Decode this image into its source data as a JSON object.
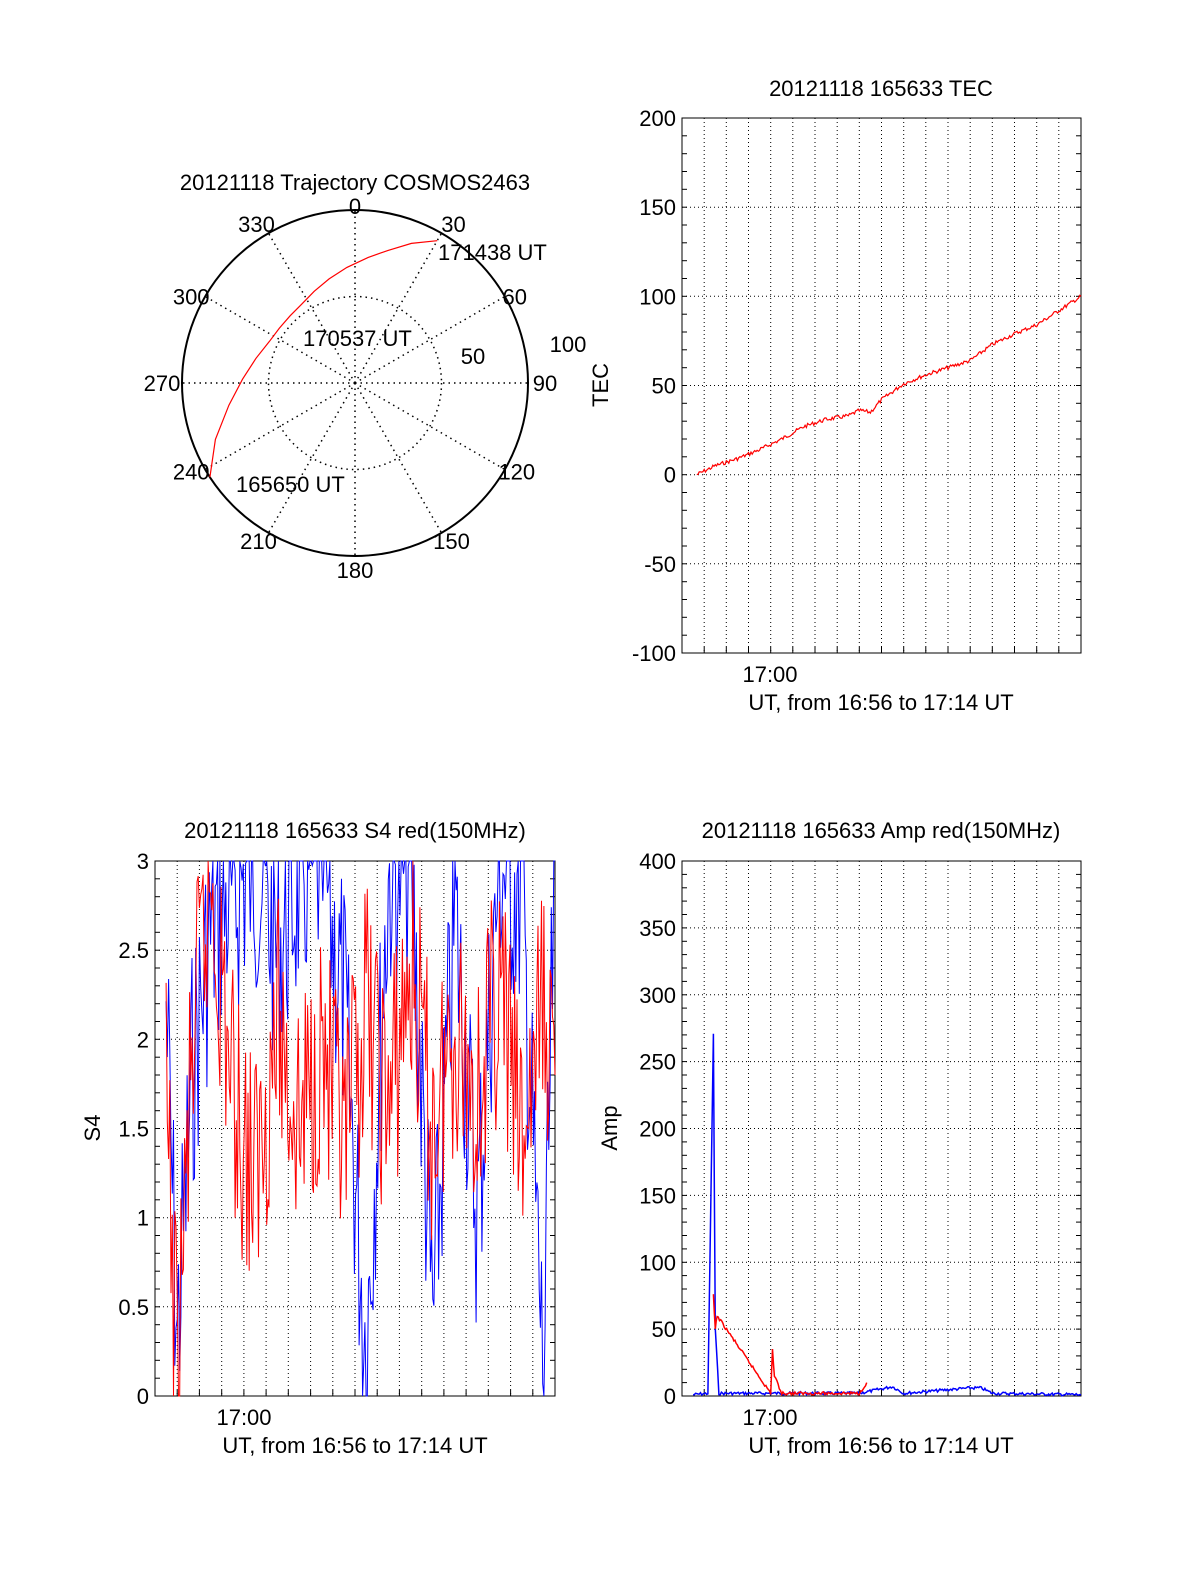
{
  "colors": {
    "red_series": "#ff0000",
    "blue_series": "#0000ff",
    "axes": "#000000",
    "background": "#ffffff"
  },
  "chart_data": [
    {
      "type": "polar",
      "title": "20121118 Trajectory COSMOS2463",
      "angle_labels": [
        {
          "angle": 0,
          "label": "0"
        },
        {
          "angle": 30,
          "label": "30"
        },
        {
          "angle": 60,
          "label": "60"
        },
        {
          "angle": 90,
          "label": "90"
        },
        {
          "angle": 120,
          "label": "120"
        },
        {
          "angle": 150,
          "label": "150"
        },
        {
          "angle": 180,
          "label": "180"
        },
        {
          "angle": 210,
          "label": "210"
        },
        {
          "angle": 240,
          "label": "240"
        },
        {
          "angle": 270,
          "label": "270"
        },
        {
          "angle": 300,
          "label": "300"
        },
        {
          "angle": 330,
          "label": "330"
        }
      ],
      "radial_ticks": [
        50,
        100
      ],
      "radial_labels": [
        "50",
        "100"
      ],
      "r_max": 100,
      "trajectory": {
        "color": "red",
        "start": {
          "label": "165650 UT",
          "azimuth": 237,
          "radius": 100
        },
        "middle": {
          "label": "170537 UT",
          "azimuth": 322,
          "radius": 55
        },
        "end": {
          "label": "171438 UT",
          "azimuth": 30,
          "radius": 95
        },
        "path": [
          [
            237,
            100
          ],
          [
            248,
            87
          ],
          [
            260,
            74
          ],
          [
            272,
            65
          ],
          [
            284,
            59
          ],
          [
            296,
            55
          ],
          [
            306,
            54
          ],
          [
            316,
            54
          ],
          [
            326,
            55
          ],
          [
            336,
            58
          ],
          [
            346,
            62
          ],
          [
            356,
            67
          ],
          [
            6,
            73
          ],
          [
            14,
            79
          ],
          [
            22,
            87
          ],
          [
            30,
            95
          ]
        ]
      }
    },
    {
      "type": "line",
      "title": "20121118 165633 TEC",
      "ylabel": "TEC",
      "xlabel": "UT, from 16:56 to 17:14 UT",
      "x_start": "16:56",
      "x_end": "17:14",
      "x_tick_label": "17:00",
      "ylim": [
        -100,
        200
      ],
      "y_ticks": [
        -100,
        -50,
        0,
        50,
        100,
        150,
        200
      ],
      "series": [
        {
          "color": "red",
          "x": [
            "16:56:40",
            "16:57:30",
            "16:58:30",
            "16:59:30",
            "17:00:30",
            "17:01:30",
            "17:02:30",
            "17:03:30",
            "17:04:00",
            "17:04:30",
            "17:05:00",
            "17:06:00",
            "17:07:00",
            "17:08:00",
            "17:09:00",
            "17:10:00",
            "17:11:00",
            "17:12:00",
            "17:13:00",
            "17:14:00"
          ],
          "y": [
            0,
            5,
            9,
            14,
            20,
            27,
            31,
            33,
            36,
            35,
            42,
            51,
            56,
            60,
            64,
            73,
            79,
            84,
            92,
            100
          ]
        }
      ]
    },
    {
      "type": "line",
      "title": "20121118 165633 S4 red(150MHz)",
      "ylabel": "S4",
      "xlabel": "UT, from 16:56 to 17:14 UT",
      "x_start": "16:56",
      "x_end": "17:14",
      "x_tick_label": "17:00",
      "ylim": [
        0,
        3
      ],
      "y_ticks": [
        0,
        0.5,
        1,
        1.5,
        2,
        2.5,
        3
      ],
      "y_tick_labels": [
        "0",
        "0.5",
        "1",
        "1.5",
        "2",
        "2.5",
        "3"
      ],
      "series": [
        {
          "color": "blue",
          "x": [
            "16:56:30",
            "16:57:00",
            "16:57:40",
            "16:58:30",
            "16:59:30",
            "17:00:30",
            "17:01:30",
            "17:02:30",
            "17:03:30",
            "17:04:30",
            "17:05:30",
            "17:06:30",
            "17:07:30",
            "17:08:30",
            "17:09:30",
            "17:10:30",
            "17:11:30",
            "17:12:30",
            "17:13:30",
            "17:14:00"
          ],
          "y": [
            2.2,
            0.3,
            1.8,
            2.6,
            2.8,
            3.0,
            2.5,
            2.9,
            3.0,
            2.2,
            0.25,
            2.9,
            3.0,
            0.4,
            2.7,
            1.0,
            3.0,
            2.8,
            0.05,
            3.0
          ]
        },
        {
          "color": "red",
          "x": [
            "16:56:30",
            "16:57:00",
            "16:57:40",
            "16:58:30",
            "16:59:30",
            "17:00:30",
            "17:01:30",
            "17:02:30",
            "17:03:30",
            "17:04:30",
            "17:05:30",
            "17:06:30",
            "17:07:30",
            "17:08:30",
            "17:09:30",
            "17:10:30",
            "17:11:30",
            "17:12:30",
            "17:13:30",
            "17:14:00"
          ],
          "y": [
            1.6,
            0.1,
            1.9,
            2.9,
            1.7,
            1.2,
            2.1,
            1.5,
            2.0,
            1.3,
            2.2,
            1.6,
            2.4,
            1.5,
            2.1,
            1.7,
            2.3,
            1.4,
            2.2,
            1.8
          ]
        }
      ]
    },
    {
      "type": "line",
      "title": "20121118 165633 Amp red(150MHz)",
      "ylabel": "Amp",
      "xlabel": "UT, from 16:56 to 17:14 UT",
      "x_start": "16:56",
      "x_end": "17:14",
      "x_tick_label": "17:00",
      "ylim": [
        0,
        400
      ],
      "y_ticks": [
        0,
        50,
        100,
        150,
        200,
        250,
        300,
        350,
        400
      ],
      "series": [
        {
          "color": "blue",
          "x": [
            "16:56:30",
            "16:57:10",
            "16:57:25",
            "16:57:30",
            "16:57:40",
            "16:58:00",
            "17:00:00",
            "17:04:00",
            "17:05:30",
            "17:06:00",
            "17:09:00",
            "17:09:30",
            "17:10:00",
            "17:14:00"
          ],
          "y": [
            1,
            2,
            270,
            50,
            2,
            2,
            2,
            2,
            7,
            2,
            6,
            6,
            2,
            1
          ]
        },
        {
          "color": "red",
          "x": [
            "16:57:25",
            "16:57:30",
            "16:57:35",
            "17:00:00",
            "17:00:05",
            "17:00:10",
            "17:00:30",
            "17:04:00",
            "17:04:20"
          ],
          "y": [
            75,
            50,
            60,
            2,
            35,
            15,
            2,
            2,
            10
          ]
        }
      ]
    }
  ]
}
